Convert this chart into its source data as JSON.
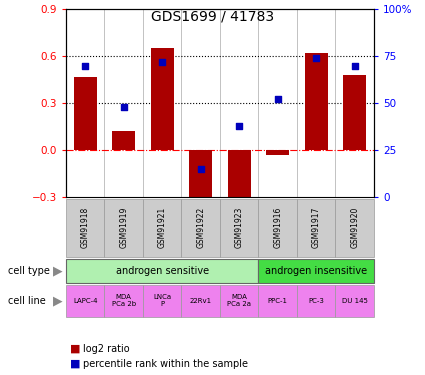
{
  "title": "GDS1699 / 41783",
  "samples": [
    "GSM91918",
    "GSM91919",
    "GSM91921",
    "GSM91922",
    "GSM91923",
    "GSM91916",
    "GSM91917",
    "GSM91920"
  ],
  "log2_ratio": [
    0.47,
    0.12,
    0.65,
    -0.32,
    -0.3,
    -0.03,
    0.62,
    0.48
  ],
  "percentile_rank": [
    70,
    48,
    72,
    15,
    38,
    52,
    74,
    70
  ],
  "cell_type_groups": [
    {
      "label": "androgen sensitive",
      "start": 0,
      "end": 5,
      "color": "#b0f0b0"
    },
    {
      "label": "androgen insensitive",
      "start": 5,
      "end": 8,
      "color": "#44dd44"
    }
  ],
  "cell_lines": [
    "LAPC-4",
    "MDA\nPCa 2b",
    "LNCa\nP",
    "22Rv1",
    "MDA\nPCa 2a",
    "PPC-1",
    "PC-3",
    "DU 145"
  ],
  "cell_line_color": "#ee82ee",
  "sample_box_color": "#cccccc",
  "bar_color": "#aa0000",
  "dot_color": "#0000bb",
  "ylim_left": [
    -0.3,
    0.9
  ],
  "ylim_right": [
    0,
    100
  ],
  "yticks_left": [
    -0.3,
    0.0,
    0.3,
    0.6,
    0.9
  ],
  "yticks_right": [
    0,
    25,
    50,
    75,
    100
  ],
  "hlines": [
    0.3,
    0.6
  ],
  "legend_labels": [
    "log2 ratio",
    "percentile rank within the sample"
  ],
  "arrow_color": "#888888"
}
